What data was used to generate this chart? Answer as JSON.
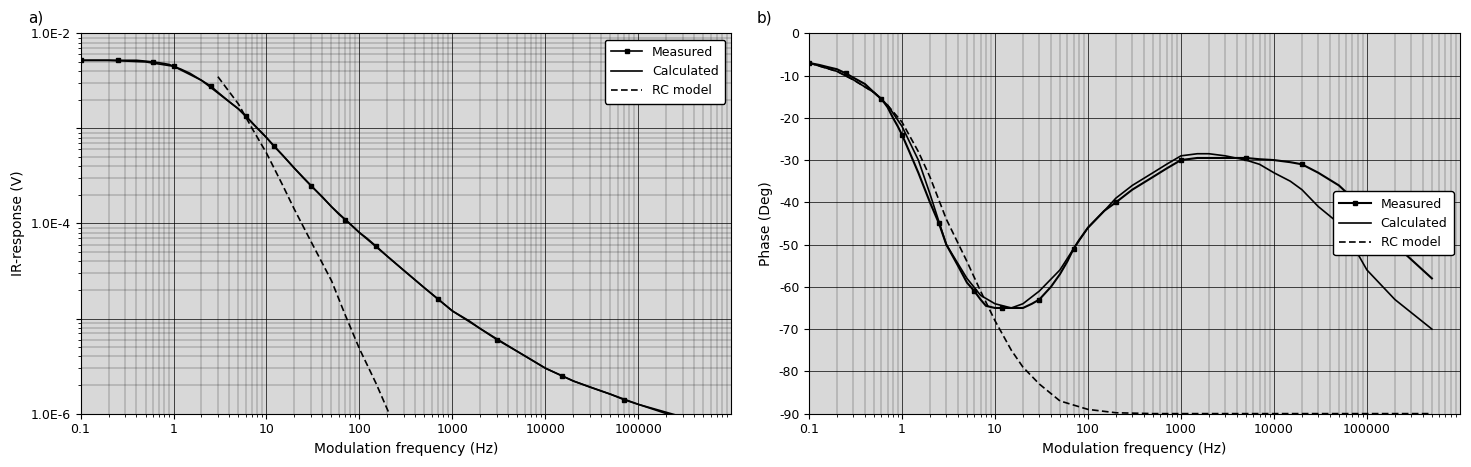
{
  "panel_a": {
    "xlabel": "Modulation frequency (Hz)",
    "ylabel": "IR-response (V)",
    "xlim": [
      0.1,
      1000000
    ],
    "ylim": [
      1e-06,
      0.01
    ],
    "ytick_vals": [
      1e-06,
      1e-05,
      0.0001,
      0.001,
      0.01
    ],
    "ytick_labels": [
      "1.0E-6",
      "",
      "1.0E-4",
      "",
      "1.0E-2"
    ],
    "xtick_vals": [
      0.1,
      1,
      10,
      100,
      1000,
      10000,
      100000
    ],
    "xtick_labels": [
      "0.1",
      "1",
      "10",
      "100",
      "1000",
      "10000",
      "100000"
    ],
    "measured": {
      "freq": [
        0.1,
        0.13,
        0.16,
        0.2,
        0.25,
        0.3,
        0.4,
        0.5,
        0.6,
        0.7,
        0.8,
        0.9,
        1.0,
        1.2,
        1.5,
        2.0,
        2.5,
        3.0,
        4.0,
        5.0,
        6.0,
        7.0,
        8.0,
        10,
        12,
        15,
        20,
        25,
        30,
        40,
        50,
        60,
        70,
        80,
        100,
        120,
        150,
        200,
        300,
        500,
        700,
        1000,
        1500,
        2000,
        3000,
        5000,
        7000,
        10000,
        15000,
        20000,
        30000,
        50000,
        70000,
        100000,
        200000,
        500000
      ],
      "val": [
        0.0052,
        0.0052,
        0.0052,
        0.0052,
        0.0052,
        0.0052,
        0.0052,
        0.0051,
        0.005,
        0.0049,
        0.0048,
        0.0047,
        0.0045,
        0.0042,
        0.0038,
        0.0032,
        0.0028,
        0.0024,
        0.0019,
        0.0016,
        0.00135,
        0.00115,
        0.001,
        0.0008,
        0.00065,
        0.00052,
        0.00038,
        0.0003,
        0.00025,
        0.00019,
        0.00015,
        0.000125,
        0.00011,
        9.8e-05,
        8e-05,
        7e-05,
        5.8e-05,
        4.5e-05,
        3.2e-05,
        2.1e-05,
        1.6e-05,
        1.2e-05,
        9.5e-06,
        7.8e-06,
        6e-06,
        4.5e-06,
        3.7e-06,
        3e-06,
        2.5e-06,
        2.2e-06,
        1.9e-06,
        1.6e-06,
        1.4e-06,
        1.25e-06,
        1e-06,
        8e-07
      ],
      "color": "#000000",
      "marker": "s",
      "markersize": 3,
      "linewidth": 1.2,
      "markevery": 4
    },
    "calculated": {
      "freq": [
        0.1,
        0.2,
        0.5,
        1.0,
        2.0,
        5.0,
        10,
        20,
        50,
        100,
        200,
        500,
        1000,
        2000,
        5000,
        10000,
        20000,
        50000,
        100000,
        500000
      ],
      "val": [
        0.0052,
        0.0052,
        0.005,
        0.0045,
        0.0032,
        0.0016,
        0.0008,
        0.00038,
        0.00015,
        8e-05,
        4.5e-05,
        2.1e-05,
        1.2e-05,
        7.8e-06,
        4.5e-06,
        3e-06,
        2.2e-06,
        1.6e-06,
        1.25e-06,
        8e-07
      ],
      "color": "#000000",
      "linewidth": 1.2
    },
    "rc_model": {
      "freq": [
        3,
        5,
        7,
        10,
        15,
        20,
        30,
        50,
        70,
        100,
        150,
        200,
        300,
        500,
        700,
        1000,
        1500,
        2000
      ],
      "val": [
        0.0035,
        0.0018,
        0.001,
        0.00055,
        0.00025,
        0.00014,
        6.5e-05,
        2.5e-05,
        1.1e-05,
        4.8e-06,
        2.1e-06,
        1.1e-06,
        4.5e-07,
        1.6e-07,
        7e-08,
        2.8e-08,
        1.2e-08,
        5e-09
      ],
      "color": "#000000",
      "linewidth": 1.2
    },
    "legend_labels": [
      "Measured",
      "Calculated",
      "RC model"
    ],
    "legend_loc": "upper right"
  },
  "panel_b": {
    "xlabel": "Modulation frequency (Hz)",
    "ylabel": "Phase (Deg)",
    "xlim": [
      0.1,
      1000000
    ],
    "ylim": [
      -90,
      0
    ],
    "ytick_vals": [
      0,
      -10,
      -20,
      -30,
      -40,
      -50,
      -60,
      -70,
      -80,
      -90
    ],
    "ytick_labels": [
      "0",
      "-10",
      "-20",
      "-30",
      "-40",
      "-50",
      "-60",
      "-70",
      "-80",
      "-90"
    ],
    "xtick_vals": [
      0.1,
      1,
      10,
      100,
      1000,
      10000,
      100000
    ],
    "xtick_labels": [
      "0.1",
      "1",
      "10",
      "100",
      "1000",
      "10000",
      "100000"
    ],
    "measured": {
      "freq": [
        0.1,
        0.13,
        0.16,
        0.2,
        0.25,
        0.3,
        0.4,
        0.5,
        0.6,
        0.7,
        0.8,
        0.9,
        1.0,
        1.2,
        1.5,
        2.0,
        2.5,
        3.0,
        4.0,
        5.0,
        6.0,
        7.0,
        8.0,
        10,
        12,
        15,
        20,
        25,
        30,
        40,
        50,
        60,
        70,
        80,
        100,
        150,
        200,
        300,
        500,
        700,
        1000,
        1500,
        2000,
        3000,
        5000,
        7000,
        10000,
        15000,
        20000,
        30000,
        50000,
        70000,
        100000,
        200000,
        500000
      ],
      "val": [
        -7,
        -7.5,
        -8,
        -8.5,
        -9.5,
        -10.5,
        -12,
        -14,
        -15.5,
        -17.5,
        -20,
        -22,
        -24,
        -28,
        -33,
        -40,
        -45,
        -50,
        -55,
        -59,
        -61,
        -63,
        -64.5,
        -65,
        -65,
        -65,
        -65,
        -64,
        -63,
        -60,
        -57,
        -54,
        -51,
        -49,
        -46,
        -42,
        -40,
        -37,
        -34,
        -32,
        -30,
        -29.5,
        -29.5,
        -29.5,
        -29.5,
        -29.8,
        -30,
        -30.5,
        -31,
        -33,
        -36,
        -39,
        -44,
        -50,
        -58
      ],
      "color": "#000000",
      "marker": "s",
      "markersize": 3,
      "linewidth": 1.5,
      "markevery": 4
    },
    "calculated": {
      "freq": [
        0.1,
        0.2,
        0.3,
        0.5,
        0.7,
        1.0,
        1.5,
        2.0,
        3.0,
        5.0,
        7.0,
        10,
        15,
        20,
        30,
        50,
        70,
        100,
        150,
        200,
        300,
        500,
        700,
        1000,
        1500,
        2000,
        3000,
        5000,
        7000,
        10000,
        15000,
        20000,
        30000,
        50000,
        70000,
        100000,
        200000,
        500000
      ],
      "val": [
        -7,
        -9,
        -11,
        -14,
        -17,
        -22,
        -30,
        -38,
        -50,
        -58,
        -62,
        -64,
        -65,
        -64,
        -61,
        -56,
        -51,
        -46,
        -42,
        -39,
        -36,
        -33,
        -31,
        -29,
        -28.5,
        -28.5,
        -29,
        -30,
        -31,
        -33,
        -35,
        -37,
        -41,
        -45,
        -50,
        -56,
        -63,
        -70
      ],
      "color": "#000000",
      "linewidth": 1.2
    },
    "rc_model": {
      "freq": [
        0.1,
        0.2,
        0.3,
        0.5,
        0.7,
        1.0,
        1.5,
        2.0,
        3.0,
        5.0,
        7.0,
        10,
        15,
        20,
        30,
        50,
        100,
        200,
        500,
        1000,
        10000,
        100000,
        500000
      ],
      "val": [
        -7,
        -9,
        -11,
        -14,
        -17,
        -21,
        -28,
        -34,
        -44,
        -54,
        -61,
        -68,
        -75,
        -79,
        -83,
        -87,
        -89,
        -89.8,
        -90,
        -90,
        -90,
        -90,
        -90
      ],
      "color": "#000000",
      "linewidth": 1.2
    },
    "legend_labels": [
      "Calculated",
      "Measured",
      "RC model"
    ],
    "legend_loc": "center right"
  },
  "bg_color": "#d8d8d8",
  "grid_color": "#000000",
  "grid_major_lw": 0.5,
  "grid_minor_lw": 0.3
}
